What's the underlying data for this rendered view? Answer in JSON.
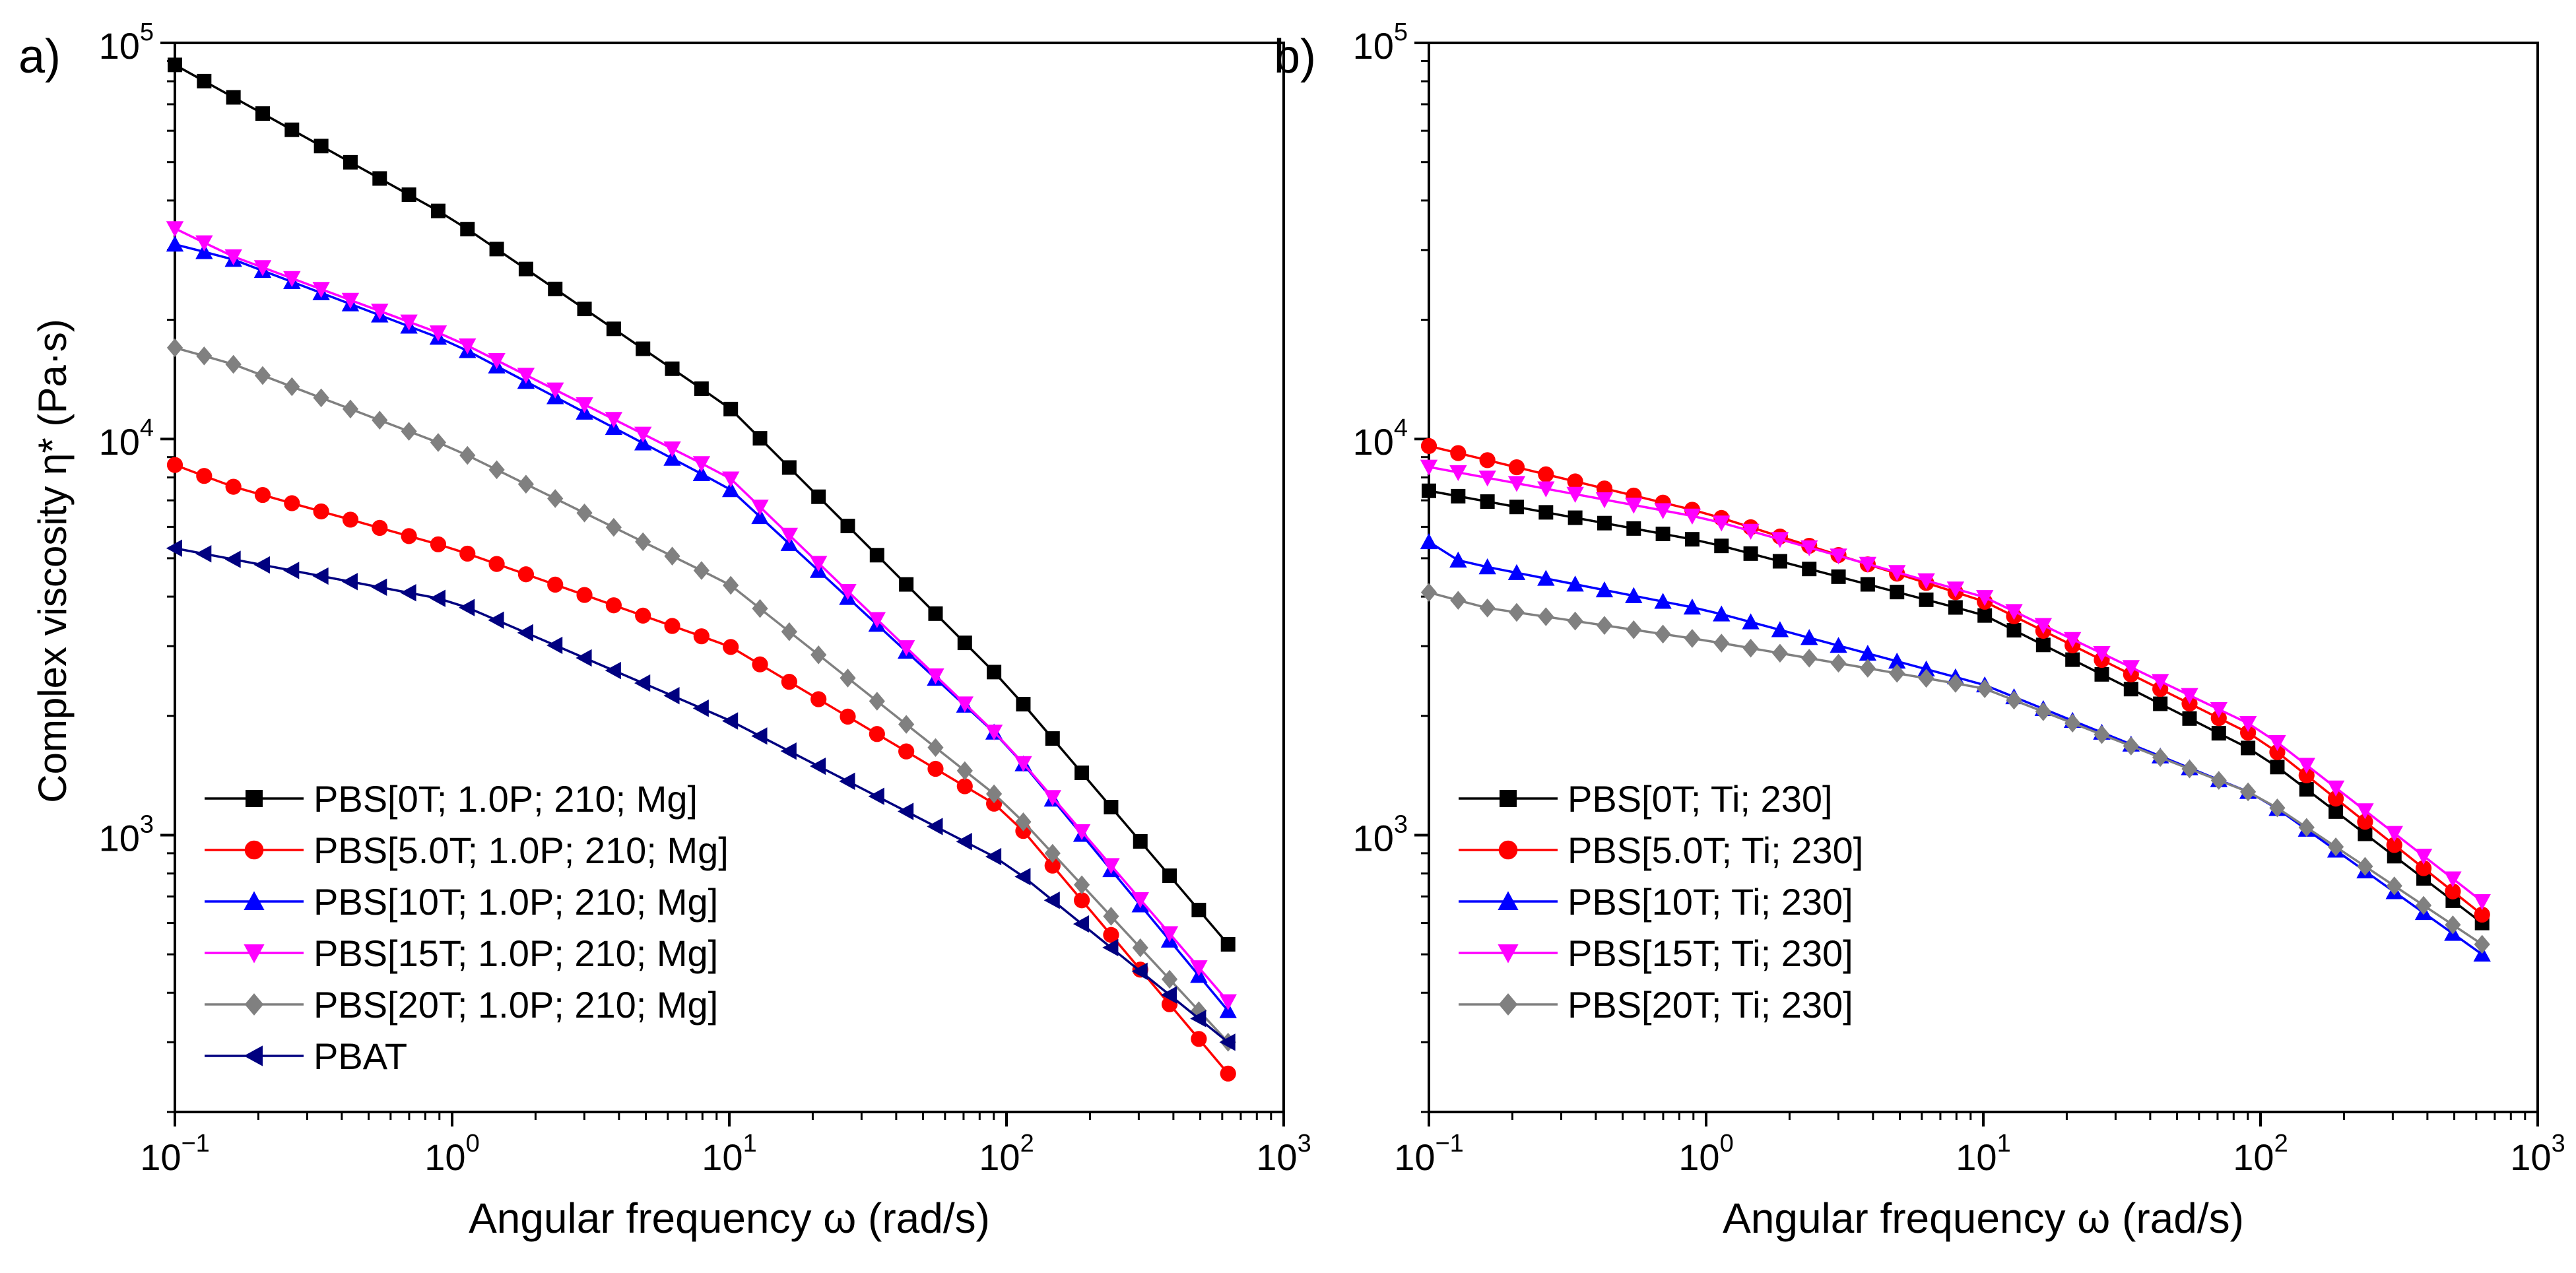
{
  "chart_data": [
    {
      "panel": "a)",
      "type": "line",
      "x_scale": "log",
      "y_scale": "log",
      "xlim": [
        0.1,
        1000
      ],
      "ylim": [
        200,
        100000
      ],
      "xlabel": "Angular frequency ω (rad/s)",
      "ylabel": "Complex viscosity η* (Pa·s)",
      "x_ticks": [
        {
          "base": "10",
          "exp": "−1"
        },
        {
          "base": "10",
          "exp": "0"
        },
        {
          "base": "10",
          "exp": "1"
        },
        {
          "base": "10",
          "exp": "2"
        },
        {
          "base": "10",
          "exp": "3"
        }
      ],
      "y_ticks": [
        {
          "base": "10",
          "exp": "3"
        },
        {
          "base": "10",
          "exp": "4"
        },
        {
          "base": "10",
          "exp": "5"
        }
      ],
      "legend_position": "bottom-left",
      "series": [
        {
          "name": "PBS[0T; 1.0P; 210; Mg]",
          "color": "#000000",
          "marker": "square",
          "x": [
            0.1,
            1,
            10,
            100,
            630
          ],
          "y": [
            88000,
            36000,
            12000,
            2400,
            530
          ]
        },
        {
          "name": "PBS[5.0T; 1.0P; 210; Mg]",
          "color": "#ff0000",
          "marker": "circle",
          "x": [
            0.1,
            0.16,
            1,
            10,
            100,
            630
          ],
          "y": [
            8600,
            7600,
            5300,
            3000,
            1150,
            250
          ]
        },
        {
          "name": "PBS[10T; 1.0P; 210; Mg]",
          "color": "#0000ff",
          "marker": "triangle-up",
          "x": [
            0.1,
            0.16,
            1,
            10,
            100,
            630
          ],
          "y": [
            31000,
            28500,
            17500,
            7500,
            1700,
            360
          ]
        },
        {
          "name": "PBS[15T; 1.0P; 210; Mg]",
          "color": "#ff00ff",
          "marker": "triangle-down",
          "x": [
            0.1,
            0.16,
            1,
            10,
            100,
            630
          ],
          "y": [
            34000,
            29000,
            18000,
            8000,
            1700,
            380
          ]
        },
        {
          "name": "PBS[20T; 1.0P; 210; Mg]",
          "color": "#808080",
          "marker": "diamond",
          "x": [
            0.1,
            0.16,
            1,
            10,
            100,
            630
          ],
          "y": [
            17000,
            15500,
            9500,
            4300,
            1200,
            300
          ]
        },
        {
          "name": "PBAT",
          "color": "#000080",
          "marker": "triangle-left",
          "x": [
            0.1,
            1,
            10,
            100,
            630
          ],
          "y": [
            5300,
            3900,
            1950,
            850,
            300
          ]
        }
      ]
    },
    {
      "panel": "b)",
      "type": "line",
      "x_scale": "log",
      "y_scale": "log",
      "xlim": [
        0.1,
        1000
      ],
      "ylim": [
        200,
        100000
      ],
      "xlabel": "Angular frequency ω (rad/s)",
      "ylabel": "",
      "x_ticks": [
        {
          "base": "10",
          "exp": "−1"
        },
        {
          "base": "10",
          "exp": "0"
        },
        {
          "base": "10",
          "exp": "1"
        },
        {
          "base": "10",
          "exp": "2"
        },
        {
          "base": "10",
          "exp": "3"
        }
      ],
      "y_ticks": [
        {
          "base": "10",
          "exp": "3"
        },
        {
          "base": "10",
          "exp": "4"
        },
        {
          "base": "10",
          "exp": "5"
        }
      ],
      "legend_position": "bottom-left",
      "series": [
        {
          "name": "PBS[0T; Ti; 230]",
          "color": "#000000",
          "marker": "square",
          "x": [
            0.1,
            1,
            10,
            100,
            630
          ],
          "y": [
            7400,
            5500,
            3600,
            1600,
            600
          ]
        },
        {
          "name": "PBS[5.0T; Ti; 230]",
          "color": "#ff0000",
          "marker": "circle",
          "x": [
            0.1,
            1,
            10,
            100,
            630
          ],
          "y": [
            9600,
            6500,
            3900,
            1750,
            630
          ]
        },
        {
          "name": "PBS[10T; Ti; 230]",
          "color": "#0000ff",
          "marker": "triangle-up",
          "x": [
            0.1,
            0.13,
            1,
            10,
            100,
            630
          ],
          "y": [
            5500,
            4900,
            3700,
            2400,
            1250,
            500
          ]
        },
        {
          "name": "PBS[15T; Ti; 230]",
          "color": "#ff00ff",
          "marker": "triangle-down",
          "x": [
            0.1,
            1,
            10,
            100,
            630
          ],
          "y": [
            8500,
            6300,
            4000,
            1850,
            680
          ]
        },
        {
          "name": "PBS[20T; Ti; 230]",
          "color": "#808080",
          "marker": "diamond",
          "x": [
            0.1,
            0.16,
            1,
            10,
            100,
            630
          ],
          "y": [
            4100,
            3750,
            3100,
            2350,
            1250,
            530
          ]
        }
      ]
    }
  ]
}
